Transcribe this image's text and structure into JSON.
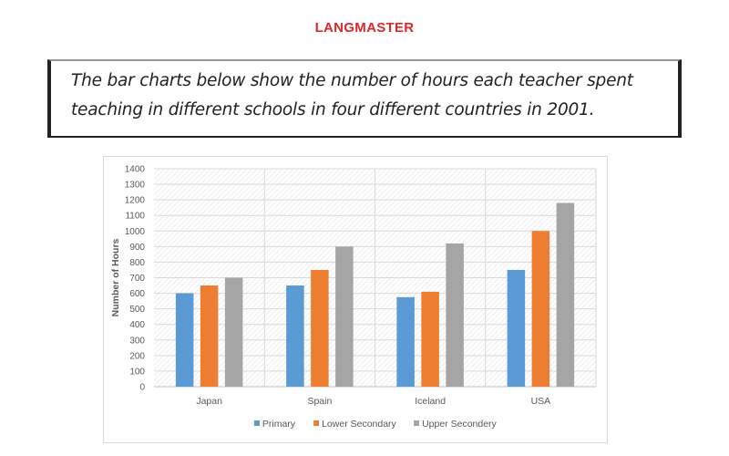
{
  "brand": {
    "logo_text": "LANGMASTER",
    "color": "#e0272a"
  },
  "prompt": {
    "line1": "The bar charts below show the number of hours each teacher spent",
    "line2": "teaching in different schools in four different countries in 2001."
  },
  "chart_data": {
    "type": "bar",
    "title": "",
    "xlabel": "",
    "ylabel": "Number of Hours",
    "ylim": [
      0,
      1400
    ],
    "yticks": [
      0,
      100,
      200,
      300,
      400,
      500,
      600,
      700,
      800,
      900,
      1000,
      1100,
      1200,
      1300,
      1400
    ],
    "grid": true,
    "legend_position": "bottom",
    "categories": [
      "Japan",
      "Spain",
      "Iceland",
      "USA"
    ],
    "series": [
      {
        "name": "Primary",
        "color": "#5b9bd5",
        "values": [
          600,
          650,
          575,
          750
        ]
      },
      {
        "name": "Lower Secondary",
        "color": "#ed7d31",
        "values": [
          650,
          750,
          610,
          1000
        ]
      },
      {
        "name": "Upper Secondery",
        "color": "#a5a5a5",
        "values": [
          700,
          900,
          920,
          1180
        ]
      }
    ]
  }
}
